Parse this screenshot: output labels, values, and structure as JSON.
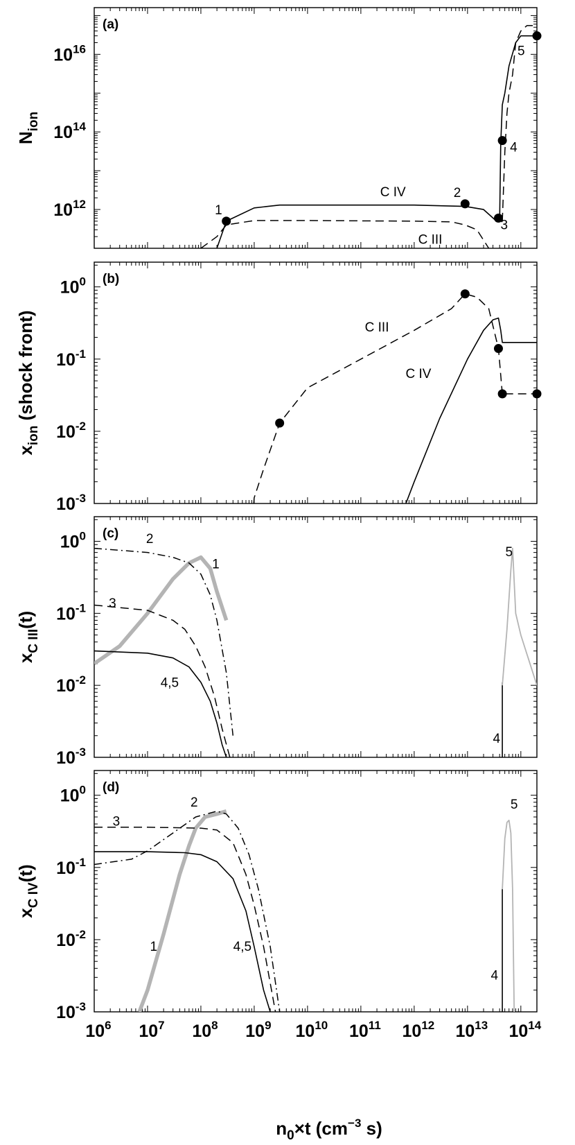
{
  "figure": {
    "xlabel": {
      "main": "n",
      "sub": "0",
      "mid": "×t (cm",
      "sup": "−3",
      "end": " s)"
    },
    "x_ticks": [
      {
        "base": "10",
        "exp": "6"
      },
      {
        "base": "10",
        "exp": "7"
      },
      {
        "base": "10",
        "exp": "8"
      },
      {
        "base": "10",
        "exp": "9"
      },
      {
        "base": "10",
        "exp": "10"
      },
      {
        "base": "10",
        "exp": "11"
      },
      {
        "base": "10",
        "exp": "12"
      },
      {
        "base": "10",
        "exp": "13"
      },
      {
        "base": "10",
        "exp": "14"
      }
    ]
  },
  "chart_data": [
    {
      "type": "line",
      "panel_label": "(a)",
      "ylabel": {
        "main": "N",
        "sub": "ion"
      },
      "xscale": "log",
      "yscale": "log",
      "xlim": [
        1000000.0,
        200000000000000.0
      ],
      "ylim": [
        100000000000.0,
        1.6e+17
      ],
      "y_ticks": [
        {
          "base": "10",
          "exp": "12",
          "value": 1000000000000.0
        },
        {
          "base": "10",
          "exp": "14",
          "value": 100000000000000.0
        },
        {
          "base": "10",
          "exp": "16",
          "value": 1e+16
        }
      ],
      "series": [
        {
          "name": "C IV",
          "style": "solid",
          "x": [
            200000000.0,
            300000000.0,
            1000000000.0,
            3000000000.0,
            100000000000.0,
            1000000000000.0,
            9000000000000.0,
            20000000000000.0,
            35000000000000.0,
            40000000000000.0,
            42000000000000.0,
            45000000000000.0,
            50000000000000.0,
            60000000000000.0,
            80000000000000.0,
            100000000000000.0,
            200000000000000.0
          ],
          "y": [
            100000000000.0,
            500000000000.0,
            1100000000000.0,
            1300000000000.0,
            1300000000000.0,
            1300000000000.0,
            1200000000000.0,
            1000000000000.0,
            500000000000.0,
            500000000000.0,
            50000000000000.0,
            500000000000000.0,
            1000000000000000.0,
            5000000000000000.0,
            2e+16,
            3e+16,
            3e+16
          ]
        },
        {
          "name": "C III",
          "style": "dashed",
          "x": [
            100000000.0,
            200000000.0,
            300000000.0,
            1000000000.0,
            10000000000.0,
            1000000000000.0,
            5000000000000.0,
            9000000000000.0,
            15000000000000.0,
            25000000000000.0
          ],
          "y": [
            100000000000.0,
            200000000000.0,
            400000000000.0,
            520000000000.0,
            520000000000.0,
            500000000000.0,
            480000000000.0,
            400000000000.0,
            300000000000.0,
            100000000000.0
          ]
        },
        {
          "name": "C III",
          "style": "dashed",
          "x": [
            45000000000000.0,
            50000000000000.0,
            55000000000000.0,
            60000000000000.0,
            70000000000000.0,
            80000000000000.0,
            100000000000000.0,
            130000000000000.0,
            200000000000000.0
          ],
          "y": [
            500000000000.0,
            30000000000000.0,
            300000000000000.0,
            1000000000000000.0,
            3000000000000000.0,
            2e+16,
            4e+16,
            5.5e+16,
            5.5e+16
          ]
        }
      ],
      "points": [
        {
          "x": 300000000.0,
          "y": 500000000000.0,
          "label": "1"
        },
        {
          "x": 9000000000000.0,
          "y": 1400000000000.0,
          "label": "2"
        },
        {
          "x": 38000000000000.0,
          "y": 600000000000.0,
          "label": "3"
        },
        {
          "x": 45000000000000.0,
          "y": 60000000000000.0,
          "label": "4"
        },
        {
          "x": 200000000000000.0,
          "y": 3e+16,
          "label": "5"
        }
      ],
      "annotations": [
        {
          "text": "C IV",
          "x": 400000000000.0,
          "y": 2200000000000.0
        },
        {
          "text": "C III",
          "x": 2000000000000.0,
          "y": 130000000000.0
        }
      ]
    },
    {
      "type": "line",
      "panel_label": "(b)",
      "ylabel": {
        "main": "x",
        "sub": "ion",
        "rest": " (shock front)"
      },
      "xscale": "log",
      "yscale": "log",
      "xlim": [
        1000000.0,
        200000000000000.0
      ],
      "ylim": [
        0.001,
        2.2
      ],
      "y_ticks": [
        {
          "base": "10",
          "exp": "-3",
          "value": 0.001
        },
        {
          "base": "10",
          "exp": "-2",
          "value": 0.01
        },
        {
          "base": "10",
          "exp": "-1",
          "value": 0.1
        },
        {
          "base": "10",
          "exp": "0",
          "value": 1
        }
      ],
      "series": [
        {
          "name": "C III",
          "style": "dashed",
          "x": [
            980000000.0,
            1000000000.0,
            1500000000.0,
            3000000000.0,
            10000000000.0,
            100000000000.0,
            1000000000000.0,
            5000000000000.0,
            9000000000000.0,
            15000000000000.0,
            25000000000000.0,
            38000000000000.0,
            45000000000000.0
          ],
          "y": [
            0.001,
            0.0012,
            0.003,
            0.013,
            0.04,
            0.1,
            0.25,
            0.5,
            0.8,
            0.72,
            0.5,
            0.14,
            0.033
          ]
        },
        {
          "name": "",
          "style": "dashed",
          "x": [
            50000000000000.0,
            200000000000000.0
          ],
          "y": [
            0.033,
            0.033
          ]
        },
        {
          "name": "C IV",
          "style": "solid",
          "x": [
            700000000000.0,
            1000000000000.0,
            3000000000000.0,
            10000000000000.0,
            20000000000000.0,
            30000000000000.0,
            38000000000000.0,
            42000000000000.0,
            45000000000000.0,
            200000000000000.0
          ],
          "y": [
            0.001,
            0.002,
            0.015,
            0.1,
            0.25,
            0.35,
            0.37,
            0.25,
            0.17,
            0.17
          ]
        }
      ],
      "points": [
        {
          "x": 3000000000.0,
          "y": 0.013
        },
        {
          "x": 9000000000000.0,
          "y": 0.8
        },
        {
          "x": 38000000000000.0,
          "y": 0.14
        },
        {
          "x": 45000000000000.0,
          "y": 0.033
        },
        {
          "x": 200000000000000.0,
          "y": 0.033
        }
      ],
      "annotations": [
        {
          "text": "C III",
          "x": 200000000000.0,
          "y": 0.24
        },
        {
          "text": "C IV",
          "x": 1200000000000.0,
          "y": 0.055
        }
      ]
    },
    {
      "type": "line",
      "panel_label": "(c)",
      "ylabel": {
        "main": "x",
        "sub": "C III",
        "rest": "(t)"
      },
      "xscale": "log",
      "yscale": "log",
      "xlim": [
        1000000.0,
        200000000000000.0
      ],
      "ylim": [
        0.001,
        2.2
      ],
      "y_ticks": [
        {
          "base": "10",
          "exp": "-3",
          "value": 0.001
        },
        {
          "base": "10",
          "exp": "-2",
          "value": 0.01
        },
        {
          "base": "10",
          "exp": "-1",
          "value": 0.1
        },
        {
          "base": "10",
          "exp": "0",
          "value": 1
        }
      ],
      "series": [
        {
          "name": "1",
          "style": "thick-gray",
          "x": [
            1000000.0,
            3000000.0,
            10000000.0,
            30000000.0,
            60000000.0,
            100000000.0,
            150000000.0,
            200000000.0,
            300000000.0
          ],
          "y": [
            0.02,
            0.035,
            0.1,
            0.3,
            0.5,
            0.6,
            0.42,
            0.2,
            0.08
          ]
        },
        {
          "name": "2",
          "style": "dashdot",
          "x": [
            1000000.0,
            10000000.0,
            30000000.0,
            60000000.0,
            100000000.0,
            150000000.0,
            200000000.0,
            300000000.0,
            400000000.0
          ],
          "y": [
            0.8,
            0.7,
            0.6,
            0.5,
            0.35,
            0.18,
            0.08,
            0.015,
            0.002
          ]
        },
        {
          "name": "3",
          "style": "dashed",
          "x": [
            1000000.0,
            10000000.0,
            30000000.0,
            50000000.0,
            80000000.0,
            120000000.0,
            180000000.0,
            250000000.0,
            350000000.0
          ],
          "y": [
            0.13,
            0.11,
            0.08,
            0.06,
            0.035,
            0.018,
            0.007,
            0.0025,
            0.001
          ]
        },
        {
          "name": "4,5",
          "style": "solid",
          "x": [
            1000000.0,
            10000000.0,
            30000000.0,
            60000000.0,
            100000000.0,
            150000000.0,
            200000000.0,
            250000000.0,
            300000000.0
          ],
          "y": [
            0.03,
            0.028,
            0.024,
            0.018,
            0.011,
            0.006,
            0.003,
            0.0015,
            0.001
          ]
        },
        {
          "name": "4",
          "style": "solid",
          "x": [
            45000000000000.0,
            45000000000000.0
          ],
          "y": [
            0.001,
            0.011
          ]
        },
        {
          "name": "5",
          "style": "thin-gray",
          "x": [
            45000000000000.0,
            55000000000000.0,
            65000000000000.0,
            70000000000000.0,
            80000000000000.0,
            100000000000000.0,
            200000000000000.0
          ],
          "y": [
            0.01,
            0.06,
            0.4,
            0.8,
            0.1,
            0.05,
            0.01
          ]
        }
      ],
      "annotations": [
        {
          "text": "2",
          "x": 11000000.0,
          "y": 0.95
        },
        {
          "text": "1",
          "x": 190000000.0,
          "y": 0.42
        },
        {
          "text": "3",
          "x": 2200000.0,
          "y": 0.12
        },
        {
          "text": "4,5",
          "x": 26000000.0,
          "y": 0.0095
        },
        {
          "text": "5",
          "x": 60000000000000.0,
          "y": 0.62
        },
        {
          "text": "4",
          "x": 35000000000000.0,
          "y": 0.0016
        }
      ]
    },
    {
      "type": "line",
      "panel_label": "(d)",
      "ylabel": {
        "main": "x",
        "sub": "C IV",
        "rest": "(t)"
      },
      "xscale": "log",
      "yscale": "log",
      "xlim": [
        1000000.0,
        200000000000000.0
      ],
      "ylim": [
        0.001,
        2.2
      ],
      "y_ticks": [
        {
          "base": "10",
          "exp": "-3",
          "value": 0.001
        },
        {
          "base": "10",
          "exp": "-2",
          "value": 0.01
        },
        {
          "base": "10",
          "exp": "-1",
          "value": 0.1
        },
        {
          "base": "10",
          "exp": "0",
          "value": 1
        }
      ],
      "series": [
        {
          "name": "1",
          "style": "thick-gray",
          "x": [
            7000000.0,
            10000000.0,
            20000000.0,
            40000000.0,
            60000000.0,
            80000000.0,
            120000000.0,
            200000000.0,
            300000000.0
          ],
          "y": [
            0.001,
            0.002,
            0.012,
            0.08,
            0.2,
            0.35,
            0.5,
            0.55,
            0.6
          ]
        },
        {
          "name": "2",
          "style": "dashdot",
          "x": [
            1000000.0,
            5000000.0,
            10000000.0,
            30000000.0,
            80000000.0,
            200000000.0,
            300000000.0,
            500000000.0,
            800000000.0,
            1200000000.0,
            2000000000.0,
            3000000000.0
          ],
          "y": [
            0.11,
            0.13,
            0.17,
            0.3,
            0.5,
            0.6,
            0.55,
            0.35,
            0.15,
            0.05,
            0.008,
            0.001
          ]
        },
        {
          "name": "3",
          "style": "dashed",
          "x": [
            1000000.0,
            10000000.0,
            100000000.0,
            200000000.0,
            400000000.0,
            700000000.0,
            1000000000.0,
            1500000000.0,
            2500000000.0
          ],
          "y": [
            0.36,
            0.36,
            0.35,
            0.33,
            0.22,
            0.08,
            0.03,
            0.008,
            0.001
          ]
        },
        {
          "name": "4,5",
          "style": "solid",
          "x": [
            1000000.0,
            10000000.0,
            50000000.0,
            100000000.0,
            200000000.0,
            400000000.0,
            700000000.0,
            1000000000.0,
            1500000000.0,
            2000000000.0
          ],
          "y": [
            0.165,
            0.165,
            0.16,
            0.15,
            0.12,
            0.07,
            0.025,
            0.008,
            0.002,
            0.001
          ]
        },
        {
          "name": "4",
          "style": "solid",
          "x": [
            45000000000000.0,
            45000000000000.0
          ],
          "y": [
            0.001,
            0.05
          ]
        },
        {
          "name": "5",
          "style": "thin-gray",
          "x": [
            45000000000000.0,
            50000000000000.0,
            55000000000000.0,
            60000000000000.0,
            65000000000000.0,
            70000000000000.0,
            75000000000000.0
          ],
          "y": [
            0.05,
            0.25,
            0.42,
            0.45,
            0.3,
            0.05,
            0.001
          ]
        }
      ],
      "annotations": [
        {
          "text": "3",
          "x": 2600000.0,
          "y": 0.38
        },
        {
          "text": "2",
          "x": 75000000.0,
          "y": 0.7
        },
        {
          "text": "5",
          "x": 75000000000000.0,
          "y": 0.65
        },
        {
          "text": "1",
          "x": 13000000.0,
          "y": 0.007
        },
        {
          "text": "4,5",
          "x": 600000000.0,
          "y": 0.007
        },
        {
          "text": "4",
          "x": 32000000000000.0,
          "y": 0.0028
        }
      ]
    }
  ]
}
